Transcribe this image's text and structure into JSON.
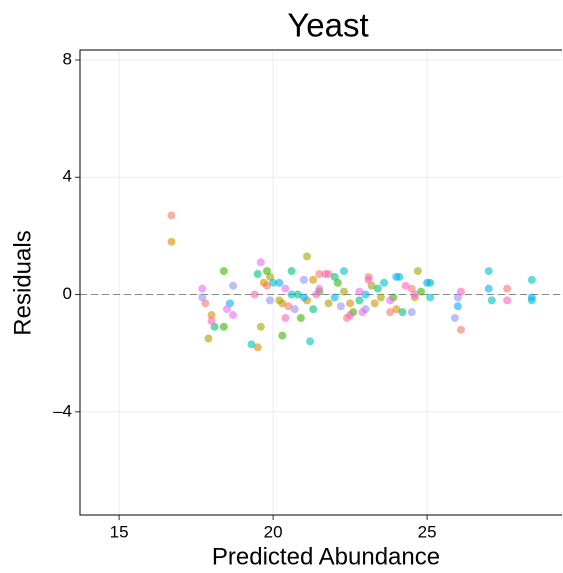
{
  "chart_data": {
    "type": "scatter",
    "title": "Yeast",
    "x_label": "Predicted Abundance",
    "y_label": "Residuals",
    "xlim": [
      13.73,
      29.38
    ],
    "ylim": [
      -7.52,
      8.34
    ],
    "xticks": [
      15,
      20,
      25
    ],
    "yticks": [
      {
        "value": -4,
        "label": "–4"
      },
      0,
      4,
      8
    ],
    "grid": true,
    "hline": 0,
    "series": [
      {
        "color": "#F8766D",
        "x": [
          16.7,
          17.8,
          19.8,
          20.5,
          21.5,
          22.4,
          23.1,
          23.8,
          24.5,
          26.1,
          27.6,
          21.8
        ],
        "values": [
          2.7,
          -0.3,
          0.3,
          -0.4,
          0.7,
          -0.8,
          0.6,
          -0.6,
          0.2,
          -1.2,
          0.2,
          0.7
        ]
      },
      {
        "color": "#D89000",
        "x": [
          16.7,
          18.0,
          19.5,
          19.7,
          20.3,
          21.1,
          22.5,
          23.3,
          24.0,
          24.6,
          21.3
        ],
        "values": [
          1.8,
          -0.7,
          -1.8,
          0.4,
          -0.3,
          -0.2,
          -0.3,
          -0.3,
          -0.5,
          -0.1,
          0.5
        ]
      },
      {
        "color": "#A3A500",
        "x": [
          17.9,
          19.6,
          20.2,
          21.1,
          22.3,
          23.2,
          24.7,
          21.8,
          19.9,
          23.5
        ],
        "values": [
          -1.5,
          -1.1,
          -0.2,
          1.3,
          0.1,
          0.3,
          0.8,
          -0.3,
          0.6,
          -0.1
        ]
      },
      {
        "color": "#39B600",
        "x": [
          18.4,
          18.4,
          19.8,
          20.3,
          21.5,
          22.6,
          23.9,
          24.8,
          20.9,
          22.1
        ],
        "values": [
          0.8,
          -1.1,
          0.8,
          -1.4,
          0.1,
          -0.6,
          -0.1,
          0.1,
          -0.8,
          0.4
        ]
      },
      {
        "color": "#00BF7D",
        "x": [
          18.1,
          19.5,
          20.6,
          21.3,
          22.0,
          23.4,
          24.2,
          25.1,
          20.8,
          22.8
        ],
        "values": [
          -1.1,
          0.7,
          0.8,
          -0.5,
          0.6,
          0.2,
          -0.6,
          0.4,
          0.0,
          -0.2
        ]
      },
      {
        "color": "#00BFC4",
        "x": [
          19.3,
          20.0,
          20.6,
          21.2,
          22.3,
          23.6,
          24.1,
          27.0,
          28.4,
          27.1,
          28.4,
          25.1
        ],
        "values": [
          -1.7,
          0.4,
          0.0,
          -1.6,
          0.8,
          0.4,
          0.6,
          0.8,
          0.5,
          -0.2,
          -0.2,
          -0.1
        ]
      },
      {
        "color": "#00B0F6",
        "x": [
          18.6,
          20.2,
          21.0,
          22.0,
          23.0,
          24.0,
          25.0,
          26.0,
          27.0,
          28.4
        ],
        "values": [
          -0.3,
          0.4,
          -0.1,
          -0.1,
          0.0,
          0.6,
          0.4,
          -0.4,
          0.2,
          -0.1
        ]
      },
      {
        "color": "#9590FF",
        "x": [
          17.7,
          18.7,
          19.9,
          21.0,
          22.2,
          23.0,
          24.5,
          25.9,
          26.0,
          20.7
        ],
        "values": [
          -0.1,
          0.3,
          -0.2,
          0.5,
          -0.4,
          -0.5,
          -0.6,
          -0.8,
          -0.1,
          -0.5
        ]
      },
      {
        "color": "#E76BF3",
        "x": [
          17.7,
          18.5,
          18.7,
          19.6,
          20.4,
          21.5,
          22.8,
          23.8,
          24.6,
          22.9
        ],
        "values": [
          0.2,
          -0.5,
          -0.7,
          1.1,
          0.2,
          0.2,
          0.1,
          -0.2,
          0.0,
          -0.6
        ]
      },
      {
        "color": "#FF62BC",
        "x": [
          18.0,
          19.4,
          20.4,
          21.4,
          22.5,
          23.1,
          24.3,
          26.1,
          27.6,
          21.7
        ],
        "values": [
          -0.9,
          0.0,
          -0.8,
          0.0,
          -0.7,
          0.5,
          0.3,
          0.1,
          -0.2,
          0.7
        ]
      }
    ]
  }
}
